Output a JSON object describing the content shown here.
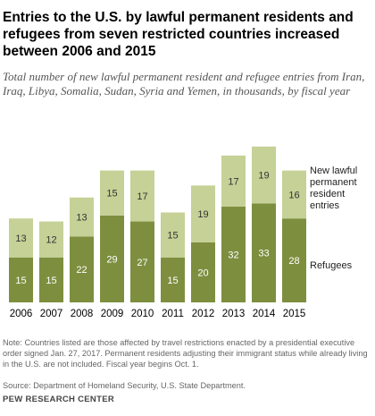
{
  "title": "Entries to the U.S. by lawful permanent residents and refugees from seven restricted countries increased between 2006 and 2015",
  "subtitle": "Total number of new lawful permanent resident and refugee entries from Iran, Iraq, Libya, Somalia, Sudan, Syria and Yemen, in thousands, by fiscal year",
  "note": "Note: Countries listed are those affected by travel restrictions enacted by a presidential executive order signed Jan. 27, 2017. Permanent residents adjusting their immigrant status while already living in the U.S. are not included. Fiscal year begins Oct. 1.",
  "source": "Source: Department of Homeland Security, U.S. State Department.",
  "brand": "PEW RESEARCH CENTER",
  "colors": {
    "refugees": "#7d8f3f",
    "new_lpr": "#c5d196",
    "label_on_dark": "#ffffff",
    "label_on_light": "#333333"
  },
  "chart_data": {
    "type": "bar",
    "stacked": true,
    "categories": [
      "2006",
      "2007",
      "2008",
      "2009",
      "2010",
      "2011",
      "2012",
      "2013",
      "2014",
      "2015"
    ],
    "series": [
      {
        "name": "Refugees",
        "values": [
          15,
          15,
          22,
          29,
          27,
          15,
          20,
          32,
          33,
          28
        ]
      },
      {
        "name": "New lawful permanent resident entries",
        "values": [
          13,
          12,
          13,
          15,
          17,
          15,
          19,
          17,
          19,
          16
        ]
      }
    ],
    "legend_labels": {
      "new_lpr": "New lawful permanent resident entries",
      "refugees": "Refugees"
    },
    "legend": "right",
    "grid": false,
    "ylim": [
      0,
      52
    ]
  }
}
